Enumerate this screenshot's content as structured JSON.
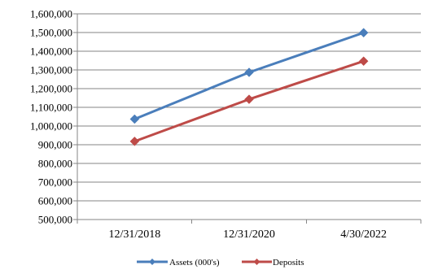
{
  "chart_data": {
    "type": "line",
    "title": "",
    "xlabel": "",
    "ylabel": "",
    "categories": [
      "12/31/2018",
      "12/31/2020",
      "4/30/2022"
    ],
    "ylim": [
      500000,
      1600000
    ],
    "yticks": [
      "500,000",
      "600,000",
      "700,000",
      "800,000",
      "900,000",
      "1,000,000",
      "1,100,000",
      "1,200,000",
      "1,300,000",
      "1,400,000",
      "1,500,000",
      "1,600,000"
    ],
    "grid": true,
    "legend_position": "bottom",
    "series": [
      {
        "name": "Assets (000's)",
        "color": "#4a7ebb",
        "marker": "diamond",
        "values": [
          1037000,
          1287000,
          1499000
        ]
      },
      {
        "name": "Deposits",
        "color": "#be4b48",
        "marker": "diamond",
        "values": [
          918000,
          1143000,
          1347000
        ]
      }
    ]
  }
}
